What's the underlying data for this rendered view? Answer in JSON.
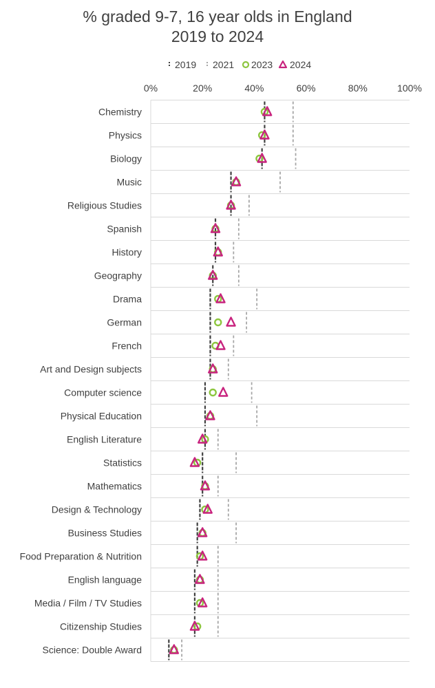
{
  "chart_data": {
    "type": "scatter",
    "title": "% graded 9-7, 16 year olds in England",
    "subtitle": "2019 to 2024",
    "xlim": [
      0,
      100
    ],
    "x_ticks": [
      "0%",
      "20%",
      "40%",
      "60%",
      "80%",
      "100%"
    ],
    "legend_position": "top",
    "categories": [
      "Chemistry",
      "Physics",
      "Biology",
      "Music",
      "Religious Studies",
      "Spanish",
      "History",
      "Geography",
      "Drama",
      "German",
      "French",
      "Art and Design subjects",
      "Computer science",
      "Physical Education",
      "English Literature",
      "Statistics",
      "Mathematics",
      "Design & Technology",
      "Business Studies",
      "Food Preparation & Nutrition",
      "English language",
      "Media / Film / TV Studies",
      "Citizenship Studies",
      "Science: Double Award"
    ],
    "series": [
      {
        "name": "2019",
        "marker": "dash",
        "color": "#404040",
        "values": [
          44,
          44,
          43,
          31,
          31,
          25,
          25,
          24,
          23,
          23,
          23,
          23,
          21,
          21,
          21,
          20,
          20,
          19,
          18,
          18,
          17,
          17,
          17,
          7
        ]
      },
      {
        "name": "2021",
        "marker": "dash",
        "color": "#a6a6a6",
        "values": [
          55,
          55,
          56,
          50,
          38,
          34,
          32,
          34,
          41,
          37,
          32,
          30,
          39,
          41,
          26,
          33,
          26,
          30,
          33,
          26,
          26,
          26,
          26,
          12
        ]
      },
      {
        "name": "2023",
        "marker": "circle",
        "color": "#8dc63f",
        "values": [
          44,
          43,
          42,
          33,
          31,
          25,
          26,
          24,
          26,
          26,
          25,
          24,
          24,
          23,
          21,
          18,
          21,
          21,
          20,
          19,
          19,
          19,
          18,
          9
        ]
      },
      {
        "name": "2024",
        "marker": "triangle",
        "color": "#c8237e",
        "values": [
          45,
          44,
          43,
          33,
          31,
          25,
          26,
          24,
          27,
          31,
          27,
          24,
          28,
          23,
          20,
          17,
          21,
          22,
          20,
          20,
          19,
          20,
          17,
          9
        ]
      }
    ]
  }
}
